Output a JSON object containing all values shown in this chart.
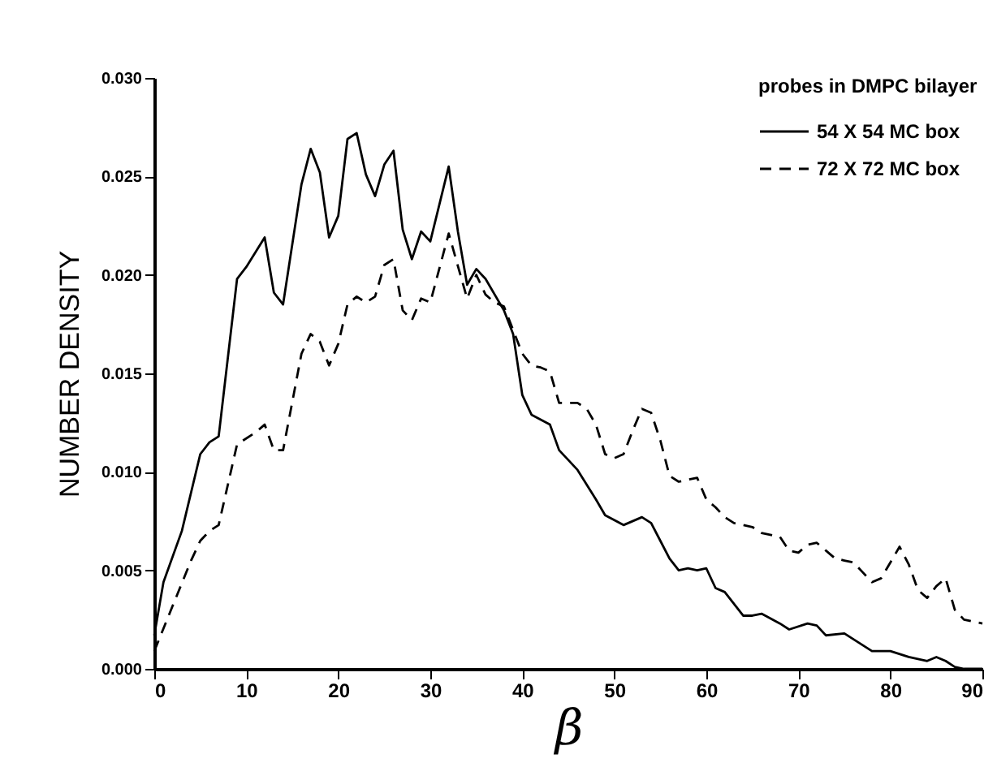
{
  "chart_data": {
    "type": "line",
    "xlabel": "β",
    "ylabel": "NUMBER DENSITY",
    "legend_title": "probes in DMPC bilayer",
    "legend": "top right",
    "grid": false,
    "marker": "none",
    "xlim": [
      0,
      90
    ],
    "xticks": [
      0,
      10,
      20,
      30,
      40,
      50,
      60,
      70,
      80,
      90
    ],
    "ylim": [
      0,
      0.03
    ],
    "yticks": [
      {
        "value": 0,
        "label": "0.000"
      },
      {
        "value": 0.005,
        "label": "0.005"
      },
      {
        "value": 0.01,
        "label": "0.010"
      },
      {
        "value": 0.015,
        "label": "0.015"
      },
      {
        "value": 0.02,
        "label": "0.020"
      },
      {
        "value": 0.025,
        "label": "0.025"
      },
      {
        "value": 0.03,
        "label": "0.030"
      }
    ],
    "series": [
      {
        "name": "54  X  54  MC  box",
        "color": "#000000",
        "line_style": "solid",
        "x": [
          0,
          1,
          3,
          5,
          6,
          7,
          9,
          10,
          12,
          13,
          14,
          16,
          17,
          18,
          19,
          20,
          21,
          22,
          23,
          24,
          25,
          26,
          27,
          28,
          29,
          30,
          32,
          33,
          34,
          35,
          36,
          38,
          39,
          40,
          41,
          43,
          44,
          46,
          48,
          49,
          51,
          53,
          54,
          55,
          56,
          57,
          58,
          59,
          60,
          61,
          62,
          64,
          65,
          66,
          68,
          69,
          71,
          72,
          73,
          75,
          77,
          78,
          80,
          82,
          84,
          85,
          86,
          87,
          88,
          90
        ],
        "values": [
          0.0017,
          0.0044,
          0.007,
          0.0109,
          0.0115,
          0.0118,
          0.0198,
          0.0204,
          0.0219,
          0.0191,
          0.0185,
          0.0246,
          0.0264,
          0.0252,
          0.0219,
          0.023,
          0.0269,
          0.0272,
          0.0251,
          0.024,
          0.0256,
          0.0263,
          0.0223,
          0.0208,
          0.0222,
          0.0217,
          0.0255,
          0.0222,
          0.0195,
          0.0203,
          0.0198,
          0.0182,
          0.017,
          0.0139,
          0.0129,
          0.0124,
          0.0111,
          0.0101,
          0.0086,
          0.0078,
          0.0073,
          0.0077,
          0.0074,
          0.0065,
          0.0056,
          0.005,
          0.0051,
          0.005,
          0.0051,
          0.0041,
          0.0039,
          0.0027,
          0.0027,
          0.0028,
          0.0023,
          0.002,
          0.0023,
          0.0022,
          0.0017,
          0.0018,
          0.0012,
          0.0009,
          0.0009,
          0.0006,
          0.0004,
          0.0006,
          0.0004,
          0.0001,
          0.0,
          0.0
        ]
      },
      {
        "name": "72  X  72  MC  box",
        "color": "#000000",
        "line_style": "dashed",
        "x": [
          0,
          2,
          4,
          5,
          6,
          7,
          9,
          11,
          12,
          13,
          14,
          16,
          17,
          18,
          19,
          20,
          21,
          22,
          23,
          24,
          25,
          26,
          27,
          28,
          29,
          30,
          32,
          34,
          35,
          36,
          37,
          38,
          39,
          40,
          41,
          42,
          43,
          44,
          46,
          47,
          48,
          49,
          50,
          51,
          52,
          53,
          54,
          55,
          56,
          57,
          58,
          59,
          60,
          61,
          62,
          63,
          65,
          66,
          68,
          69,
          70,
          71,
          72,
          73,
          74,
          75,
          76,
          77,
          78,
          79,
          80,
          81,
          82,
          83,
          84,
          85,
          86,
          87,
          88,
          90
        ],
        "values": [
          0.0009,
          0.0032,
          0.0055,
          0.0065,
          0.007,
          0.0073,
          0.0114,
          0.012,
          0.0124,
          0.0111,
          0.0111,
          0.016,
          0.017,
          0.0166,
          0.0154,
          0.0165,
          0.0185,
          0.0189,
          0.0186,
          0.0189,
          0.0205,
          0.0208,
          0.0182,
          0.0177,
          0.0188,
          0.0186,
          0.0221,
          0.0188,
          0.02,
          0.019,
          0.0186,
          0.0184,
          0.0172,
          0.016,
          0.0154,
          0.0153,
          0.0151,
          0.0135,
          0.0135,
          0.0132,
          0.0124,
          0.0109,
          0.0107,
          0.0109,
          0.0121,
          0.0132,
          0.013,
          0.0116,
          0.0098,
          0.0095,
          0.0096,
          0.0097,
          0.0086,
          0.0082,
          0.0077,
          0.0074,
          0.0072,
          0.0069,
          0.0067,
          0.006,
          0.0059,
          0.0063,
          0.0064,
          0.006,
          0.0056,
          0.0055,
          0.0054,
          0.0049,
          0.0044,
          0.0046,
          0.0054,
          0.0062,
          0.0053,
          0.004,
          0.0036,
          0.0042,
          0.0046,
          0.003,
          0.0025,
          0.0023
        ]
      }
    ]
  }
}
